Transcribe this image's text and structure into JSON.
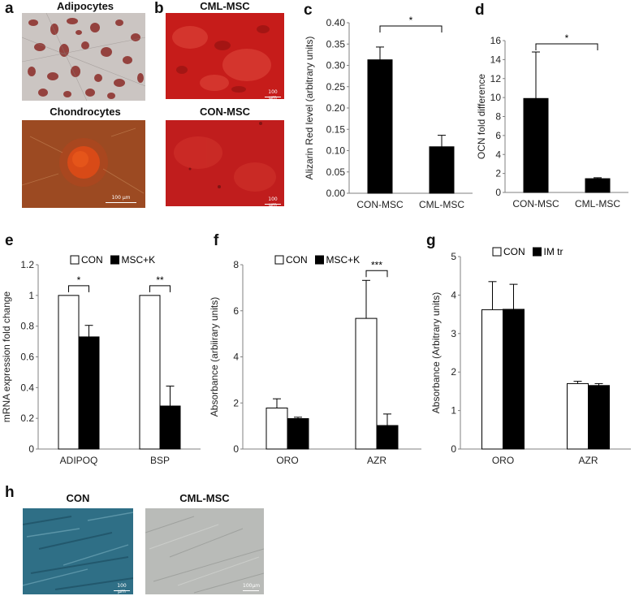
{
  "panels": {
    "a": {
      "letter": "a",
      "top_title": "Adipocytes",
      "bottom_title": "Chondrocytes",
      "bottom_scale": "100 µm"
    },
    "b": {
      "letter": "b",
      "top_title": "CML-MSC",
      "bottom_title": "CON-MSC",
      "top_scale": "100 µm",
      "bottom_scale": "100 µm"
    },
    "c": {
      "letter": "c"
    },
    "d": {
      "letter": "d"
    },
    "e": {
      "letter": "e"
    },
    "f": {
      "letter": "f"
    },
    "g": {
      "letter": "g"
    },
    "h": {
      "letter": "h",
      "left_title": "CON",
      "right_title": "CML-MSC",
      "left_scale": "100 µm",
      "right_scale": "100µm"
    }
  },
  "colors": {
    "black_bar": "#000000",
    "white_bar": "#ffffff",
    "adipocyte_bg": "#c9c3c0",
    "adipocyte_stain": "#8a2e2a",
    "chondro_bg": "#a0461a",
    "cml_msc_red": "#c4191a",
    "con_msc_red": "#bf1e1e",
    "con_blue": "#2f6f86",
    "cml_gray": "#b7b9b6"
  },
  "chart_data": [
    {
      "id": "c",
      "type": "bar",
      "categories": [
        "CON-MSC",
        "CML-MSC"
      ],
      "values": [
        0.313,
        0.109
      ],
      "errors": [
        0.03,
        0.027
      ],
      "bar_colors": [
        "#000000",
        "#000000"
      ],
      "ylabel": "Alizarin Red level (arbitrary units)",
      "ylim": [
        0,
        0.4
      ],
      "yticks": [
        "0.00",
        "0.05",
        "0.10",
        "0.15",
        "0.20",
        "0.25",
        "0.30",
        "0.35",
        "0.40"
      ],
      "significance": [
        {
          "from": 0,
          "to": 1,
          "label": "*"
        }
      ]
    },
    {
      "id": "d",
      "type": "bar",
      "categories": [
        "CON-MSC",
        "CML-MSC"
      ],
      "values": [
        9.9,
        1.45
      ],
      "errors": [
        4.9,
        0.1
      ],
      "bar_colors": [
        "#000000",
        "#000000"
      ],
      "ylabel": "OCN fold difference",
      "ylim": [
        0,
        16
      ],
      "yticks": [
        "0",
        "2",
        "4",
        "6",
        "8",
        "10",
        "12",
        "14",
        "16"
      ],
      "significance": [
        {
          "from": 0,
          "to": 1,
          "label": "*"
        }
      ]
    },
    {
      "id": "e",
      "type": "bar",
      "categories": [
        "ADIPOQ",
        "BSP"
      ],
      "series": [
        {
          "name": "CON",
          "values": [
            1.0,
            1.0
          ],
          "errors": [
            0,
            0
          ],
          "color": "#ffffff"
        },
        {
          "name": "MSC+K",
          "values": [
            0.73,
            0.28
          ],
          "errors": [
            0.075,
            0.13
          ],
          "color": "#000000"
        }
      ],
      "ylabel": "mRNA expression fold change",
      "ylim": [
        0,
        1.2
      ],
      "yticks": [
        "0",
        "0.2",
        "0.4",
        "0.6",
        "0.8",
        "1",
        "1.2"
      ],
      "legend": "top",
      "significance": [
        {
          "category": 0,
          "label": "*"
        },
        {
          "category": 1,
          "label": "**"
        }
      ]
    },
    {
      "id": "f",
      "type": "bar",
      "categories": [
        "ORO",
        "AZR"
      ],
      "series": [
        {
          "name": "CON",
          "values": [
            1.78,
            5.67
          ],
          "errors": [
            0.4,
            1.65
          ],
          "color": "#ffffff"
        },
        {
          "name": "MSC+K",
          "values": [
            1.32,
            1.02
          ],
          "errors": [
            0.06,
            0.5
          ],
          "color": "#000000"
        }
      ],
      "ylabel": "Absorbance (arbiirary units)",
      "ylim": [
        0,
        8
      ],
      "yticks": [
        "0",
        "2",
        "4",
        "6",
        "8"
      ],
      "legend": "top",
      "significance": [
        {
          "category": 1,
          "label": "***"
        }
      ]
    },
    {
      "id": "g",
      "type": "bar",
      "categories": [
        "ORO",
        "AZR"
      ],
      "series": [
        {
          "name": "CON",
          "values": [
            3.62,
            1.7
          ],
          "errors": [
            0.73,
            0.06
          ],
          "color": "#ffffff"
        },
        {
          "name": "IM tr",
          "values": [
            3.63,
            1.65
          ],
          "errors": [
            0.65,
            0.05
          ],
          "color": "#000000"
        }
      ],
      "ylabel": "Absorbance (Arbitrary units)",
      "ylim": [
        0,
        5
      ],
      "yticks": [
        "0",
        "1",
        "2",
        "3",
        "4",
        "5"
      ],
      "legend": "top"
    }
  ]
}
